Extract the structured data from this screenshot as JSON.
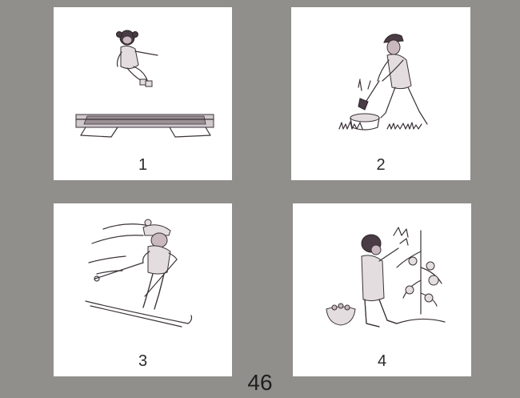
{
  "cards": [
    {
      "number": "1",
      "scene": "trampoline-jump"
    },
    {
      "number": "2",
      "scene": "chopping-wood"
    },
    {
      "number": "3",
      "scene": "skiing"
    },
    {
      "number": "4",
      "scene": "picking-tomatoes"
    }
  ],
  "page_number": "46",
  "colors": {
    "background": "#918f8b",
    "card": "#ffffff",
    "ink": "#3a3238"
  }
}
